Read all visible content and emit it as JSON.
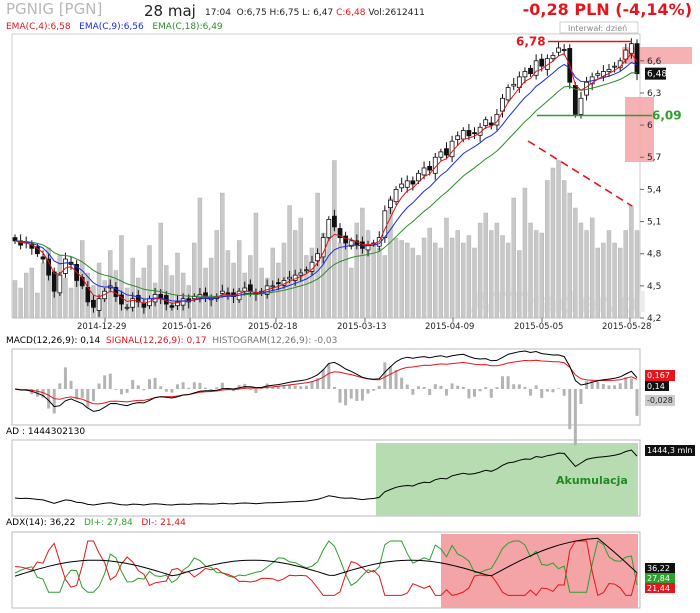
{
  "header": {
    "title": "PGNIG [PGN]",
    "date": "28 maj",
    "time": "17:04",
    "open": "O:6,75",
    "high": "H:6,75",
    "low": "L: 6,47",
    "close": "C:6,48",
    "volume": "Vol:2612411",
    "change": "-0,28 PLN (-4,14%)",
    "interval": "Interwał: dzień",
    "watermark": "ATTrader.pl"
  },
  "legend": {
    "ema4": "EMA(C,4):6,58",
    "ema9": "EMA(C,9):6,56",
    "ema18": "EMA(C,18):6,49"
  },
  "colors": {
    "ema4": "#e0141c",
    "ema9": "#1a2ae8",
    "ema18": "#2e8b2e",
    "volume": "#c8c8c8",
    "resistance": "#e8141c",
    "support": "#2e9e2e",
    "accum_zone": "#b7dcb2",
    "adx_zone": "#f4a3a6"
  },
  "chart_data": [
    {
      "type": "candlestick",
      "title": "PGNIG [PGN]",
      "x_ticks": [
        "2014-12-29",
        "2015-01-26",
        "2015-02-18",
        "2015-03-13",
        "2015-04-09",
        "2015-05-05",
        "2015-05-28"
      ],
      "y_ticks": [
        "4,2",
        "4,5",
        "4,8",
        "5,1",
        "5,4",
        "5,7",
        "6",
        "6,3",
        "6,6"
      ],
      "ylim": [
        4.2,
        6.85
      ],
      "close_series": [
        4.92,
        4.88,
        4.9,
        4.85,
        4.8,
        4.75,
        4.6,
        4.45,
        4.6,
        4.75,
        4.7,
        4.55,
        4.5,
        4.35,
        4.3,
        4.38,
        4.45,
        4.5,
        4.4,
        4.33,
        4.3,
        4.38,
        4.35,
        4.3,
        4.38,
        4.42,
        4.38,
        4.33,
        4.3,
        4.35,
        4.38,
        4.35,
        4.4,
        4.42,
        4.4,
        4.38,
        4.4,
        4.45,
        4.42,
        4.4,
        4.45,
        4.48,
        4.45,
        4.42,
        4.45,
        4.5,
        4.5,
        4.52,
        4.55,
        4.58,
        4.6,
        4.62,
        4.65,
        4.72,
        4.8,
        4.95,
        5.12,
        5.05,
        4.95,
        4.9,
        4.92,
        4.88,
        4.85,
        4.88,
        4.9,
        4.95,
        5.2,
        5.3,
        5.4,
        5.45,
        5.48,
        5.45,
        5.55,
        5.6,
        5.58,
        5.7,
        5.75,
        5.72,
        5.85,
        5.9,
        5.95,
        5.9,
        5.92,
        5.98,
        6.05,
        6.0,
        6.1,
        6.25,
        6.35,
        6.38,
        6.45,
        6.5,
        6.48,
        6.6,
        6.55,
        6.62,
        6.65,
        6.72,
        6.7,
        6.4,
        6.1,
        6.25,
        6.4,
        6.45,
        6.48,
        6.5,
        6.52,
        6.55,
        6.6,
        6.7,
        6.76,
        6.48
      ],
      "ema4_last": 6.58,
      "ema9_last": 6.56,
      "ema18_last": 6.49,
      "annotations": {
        "resistance_label": "6,78",
        "resistance_value": 6.78,
        "support_label": "6,09",
        "support_value": 6.09,
        "last_price_label": "6,48",
        "last_price_value": 6.48
      },
      "volume": [
        0.15,
        0.12,
        0.18,
        0.2,
        0.1,
        0.22,
        0.28,
        0.14,
        0.25,
        0.16,
        0.12,
        0.2,
        0.31,
        0.18,
        0.13,
        0.22,
        0.15,
        0.27,
        0.19,
        0.33,
        0.12,
        0.24,
        0.16,
        0.2,
        0.29,
        0.14,
        0.38,
        0.21,
        0.17,
        0.26,
        0.18,
        0.13,
        0.3,
        0.48,
        0.2,
        0.24,
        0.35,
        0.5,
        0.27,
        0.22,
        0.31,
        0.18,
        0.25,
        0.42,
        0.2,
        0.16,
        0.28,
        0.22,
        0.3,
        0.45,
        0.35,
        0.4,
        0.25,
        0.28,
        0.5,
        0.34,
        0.38,
        0.63,
        0.3,
        0.3,
        0.2,
        0.38,
        0.44,
        0.35,
        0.3,
        0.28,
        0.25,
        0.48,
        0.32,
        0.31,
        0.3,
        0.28,
        0.25,
        0.32,
        0.36,
        0.3,
        0.28,
        0.4,
        0.32,
        0.35,
        0.3,
        0.33,
        0.28,
        0.38,
        0.42,
        0.35,
        0.38,
        0.33,
        0.3,
        0.48,
        0.27,
        0.52,
        0.38,
        0.35,
        0.34,
        0.55,
        0.6,
        0.63,
        0.55,
        0.5,
        0.44,
        0.38,
        0.35,
        0.4,
        0.28,
        0.3,
        0.35,
        0.3,
        0.28,
        0.35,
        0.45,
        0.35
      ]
    },
    {
      "type": "line",
      "title": "MACD(12,26,9)",
      "series": [
        {
          "name": "MACD(12,26,9)",
          "last": 0.14
        },
        {
          "name": "SIGNAL(12,26,9)",
          "last": 0.17
        },
        {
          "name": "HISTOGRAM(12,26,9)",
          "last": -0.03
        }
      ],
      "value_labels": [
        "0,167",
        "0,14",
        "-0,028"
      ]
    },
    {
      "type": "line",
      "title": "AD",
      "series": [
        {
          "name": "AD",
          "last": 1444302130
        }
      ],
      "value_label": "1444,3 mln",
      "zone_label": "Akumulacja"
    },
    {
      "type": "line",
      "title": "ADX(14)",
      "series": [
        {
          "name": "ADX(14)",
          "last": 36.22
        },
        {
          "name": "DI+",
          "last": 27.84
        },
        {
          "name": "DI-",
          "last": 21.44
        }
      ],
      "value_labels": [
        "36,22",
        "27,84",
        "21,44"
      ]
    }
  ],
  "labels": {
    "macd": "MACD(12,26,9): 0,14",
    "signal": "SIGNAL(12,26,9): 0,17",
    "histogram": "HISTOGRAM(12,26,9): -0,03",
    "ad": "AD : 1444302130",
    "adx": "ADX(14): 36,22",
    "diplus": "DI+: 27,84",
    "diminus": "DI-: 21,44"
  }
}
